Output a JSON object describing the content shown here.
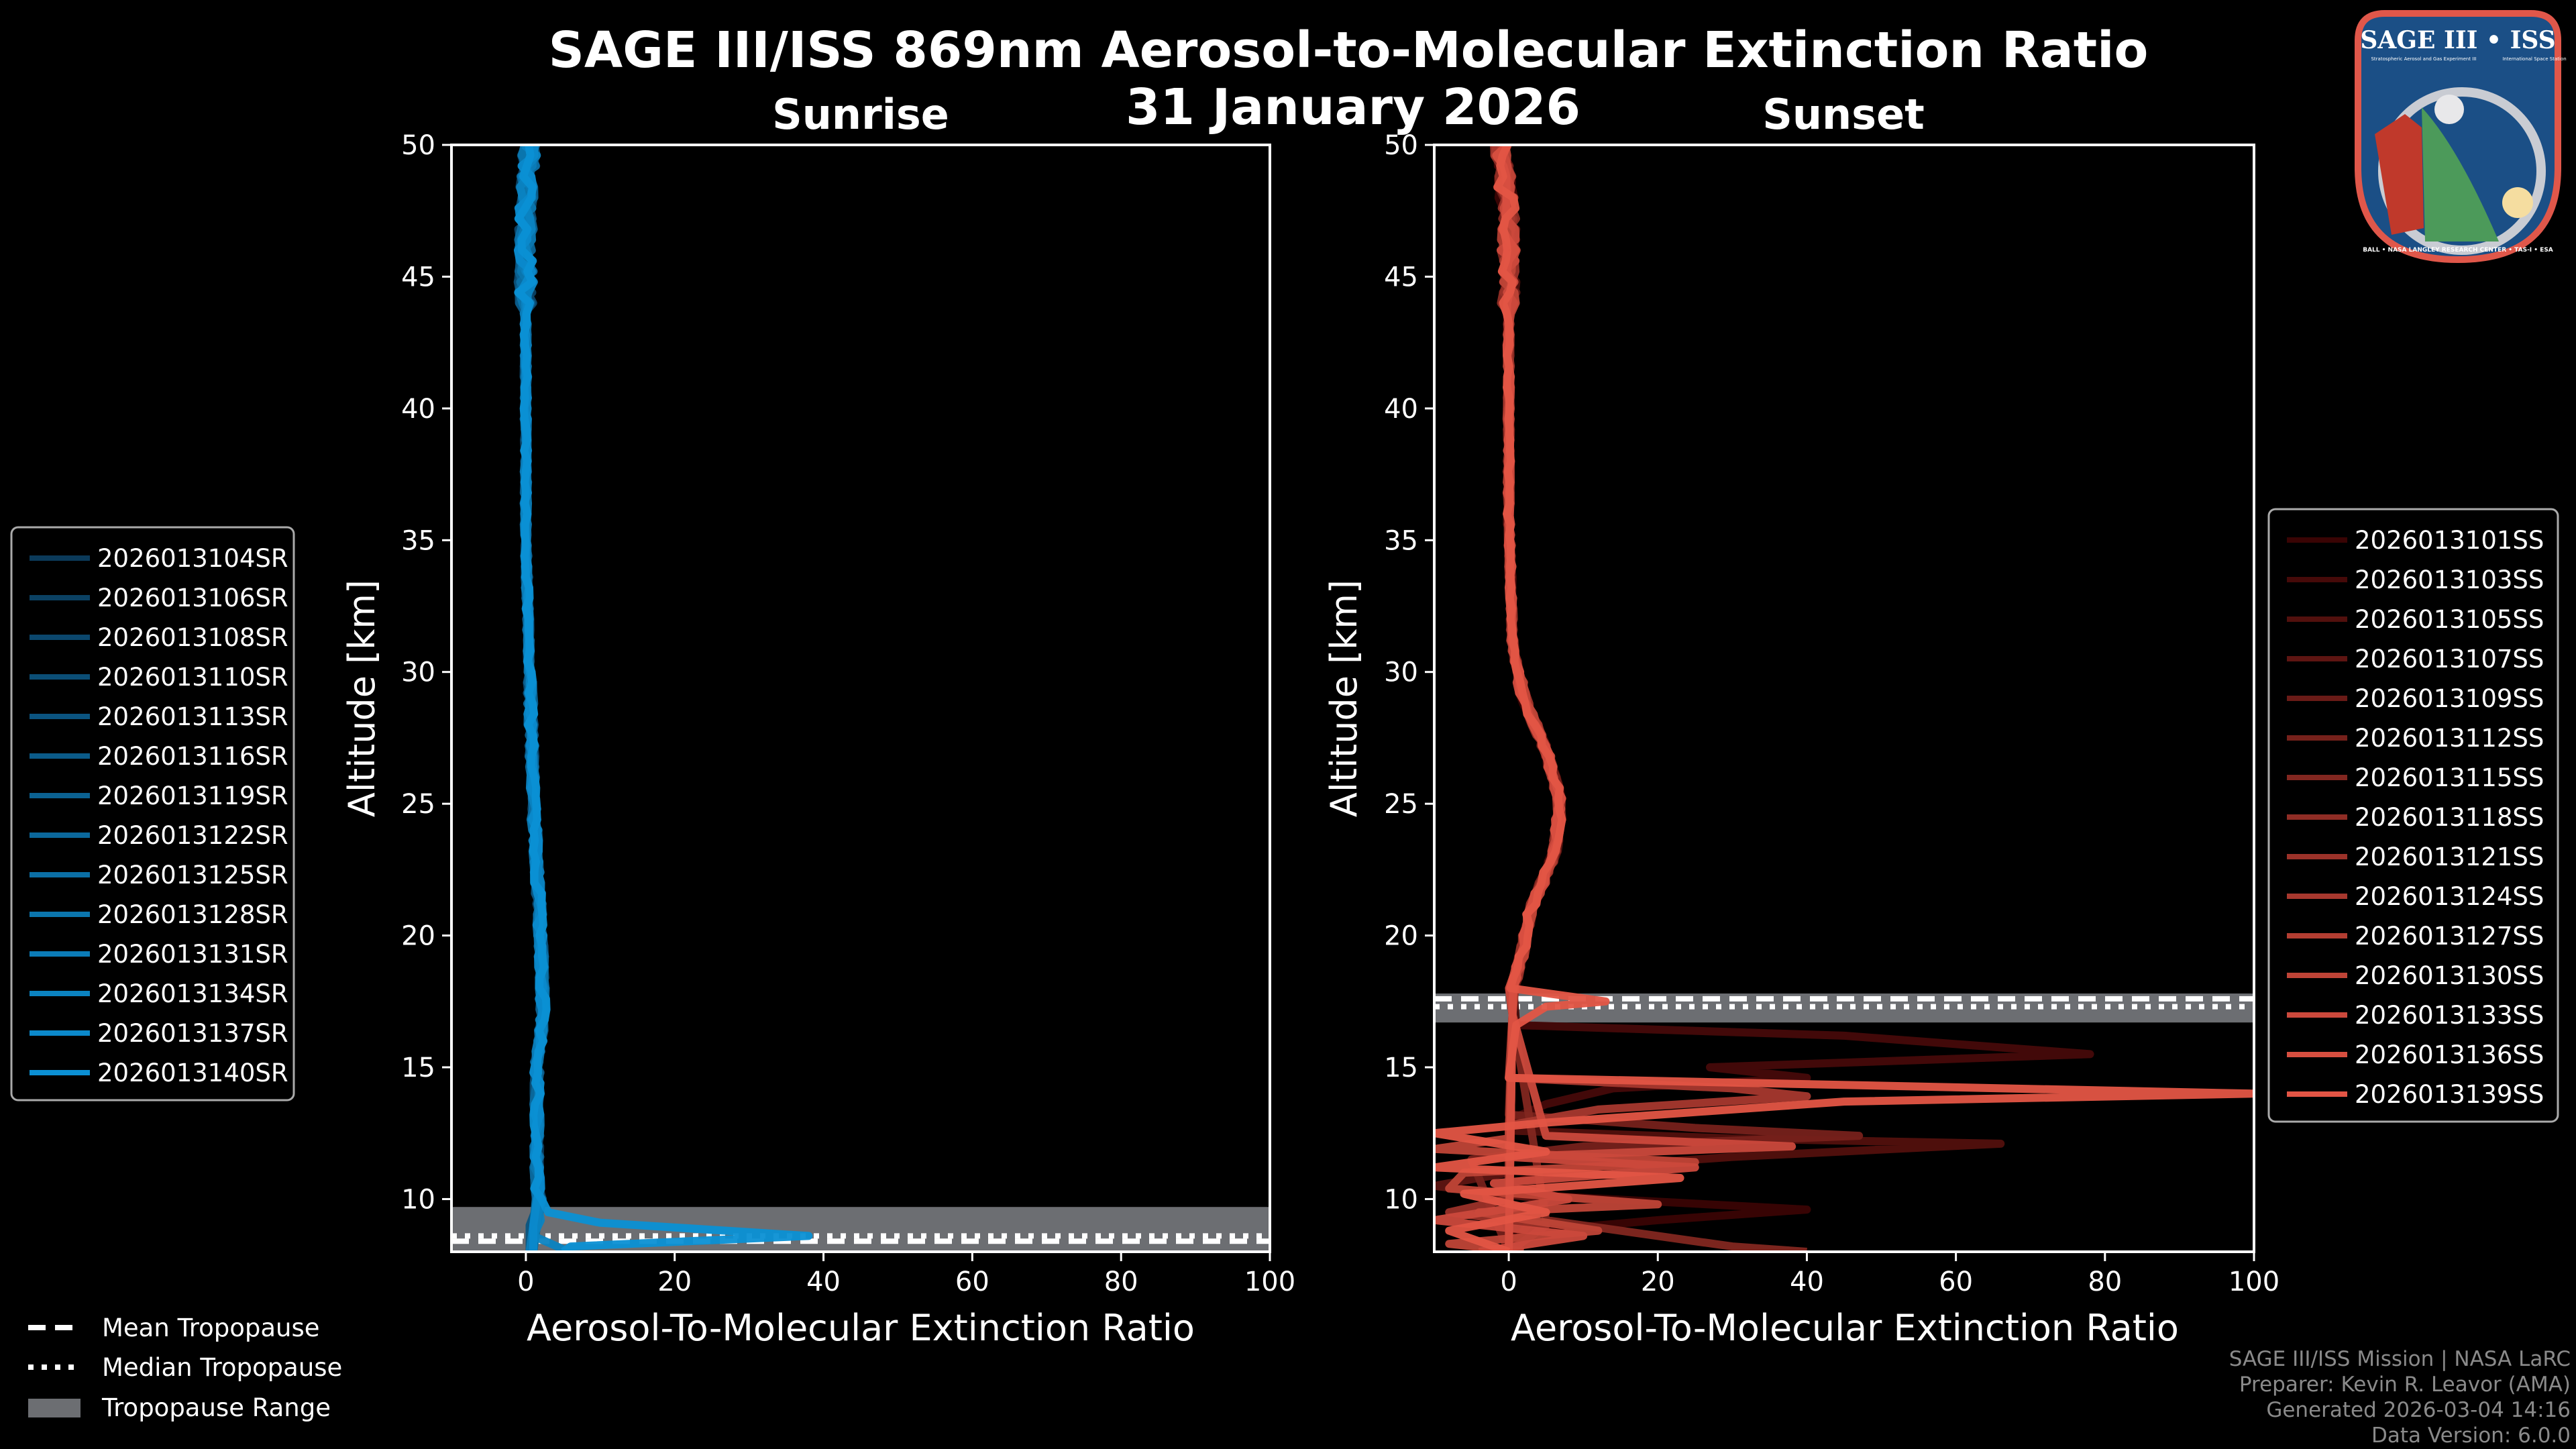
{
  "title": "SAGE III/ISS 869nm Aerosol-to-Molecular Extinction Ratio",
  "date": "31 January 2026",
  "footer": [
    "SAGE III/ISS Mission | NASA LaRC",
    "Preparer: Kevin R. Leavor (AMA)",
    "Generated 2026-03-04 14:16",
    "Data Version: 6.0.0"
  ],
  "logo": {
    "title": "SAGE III • ISS",
    "subtitle": "Stratospheric Aerosol and Gas Experiment III",
    "subtitle2": "International Space Station",
    "ring": "BALL • NASA LANGLEY RESEARCH CENTER • TAS-I • ESA"
  },
  "tropo_legend": {
    "mean": "Mean Tropopause",
    "median": "Median Tropopause",
    "range": "Tropopause Range"
  },
  "chart_data": [
    {
      "type": "line",
      "title": "Sunrise",
      "xlabel": "Aerosol-To-Molecular Extinction Ratio",
      "ylabel": "Altitude [km]",
      "xlim": [
        -10,
        100
      ],
      "ylim": [
        8,
        50
      ],
      "xticks": [
        0,
        20,
        40,
        60,
        80,
        100
      ],
      "yticks": [
        10,
        15,
        20,
        25,
        30,
        35,
        40,
        45,
        50
      ],
      "legend_placement": "left-outside",
      "color_start": "#0b3a5a",
      "color_end": "#0b90d4",
      "tropopause": {
        "mean": 8.4,
        "median": 8.6,
        "range": [
          8.0,
          9.7
        ]
      },
      "base_profile": [
        [
          50,
          0.5
        ],
        [
          47,
          0
        ],
        [
          42,
          0
        ],
        [
          35,
          0
        ],
        [
          30,
          0.5
        ],
        [
          25,
          1
        ],
        [
          20,
          2
        ],
        [
          17,
          2.3
        ],
        [
          15,
          1.5
        ],
        [
          10.5,
          1.5
        ],
        [
          9.7,
          2
        ]
      ],
      "series": [
        {
          "name": "2026013104SR",
          "tropo": [
            [
              9,
              1
            ],
            [
              8,
              1
            ]
          ]
        },
        {
          "name": "2026013106SR",
          "tropo": [
            [
              9,
              1.5
            ],
            [
              8,
              1
            ]
          ]
        },
        {
          "name": "2026013108SR",
          "tropo": [
            [
              9,
              1
            ],
            [
              8,
              0.5
            ]
          ]
        },
        {
          "name": "2026013110SR",
          "tropo": [
            [
              9,
              1
            ],
            [
              8,
              1
            ]
          ]
        },
        {
          "name": "2026013113SR",
          "tropo": [
            [
              9,
              0.5
            ],
            [
              8,
              0.5
            ]
          ]
        },
        {
          "name": "2026013116SR",
          "tropo": [
            [
              9,
              1
            ],
            [
              8,
              1
            ]
          ]
        },
        {
          "name": "2026013119SR",
          "tropo": [
            [
              9,
              1
            ],
            [
              8,
              0.5
            ]
          ]
        },
        {
          "name": "2026013122SR",
          "tropo": [
            [
              9,
              1
            ],
            [
              8,
              1
            ]
          ]
        },
        {
          "name": "2026013125SR",
          "tropo": [
            [
              9,
              1
            ],
            [
              8,
              1
            ]
          ]
        },
        {
          "name": "2026013128SR",
          "tropo": [
            [
              9,
              1.5
            ],
            [
              8,
              1
            ]
          ]
        },
        {
          "name": "2026013131SR",
          "tropo": [
            [
              9,
              1
            ],
            [
              8,
              0.5
            ]
          ]
        },
        {
          "name": "2026013134SR",
          "tropo": [
            [
              9.2,
              2
            ],
            [
              8.6,
              1
            ],
            [
              8.1,
              5
            ]
          ]
        },
        {
          "name": "2026013137SR",
          "tropo": [
            [
              9,
              1
            ],
            [
              8,
              1
            ]
          ]
        },
        {
          "name": "2026013140SR",
          "tropo": [
            [
              9.5,
              3
            ],
            [
              9.1,
              10
            ],
            [
              8.6,
              38
            ],
            [
              8.2,
              6
            ],
            [
              8,
              5
            ]
          ]
        }
      ]
    },
    {
      "type": "line",
      "title": "Sunset",
      "xlabel": "Aerosol-To-Molecular Extinction Ratio",
      "ylabel": "Altitude [km]",
      "xlim": [
        -10,
        100
      ],
      "ylim": [
        8,
        50
      ],
      "xticks": [
        0,
        20,
        40,
        60,
        80,
        100
      ],
      "yticks": [
        10,
        15,
        20,
        25,
        30,
        35,
        40,
        45,
        50
      ],
      "legend_placement": "right-outside",
      "color_start": "#3a0404",
      "color_end": "#e35545",
      "tropopause": {
        "mean": 17.6,
        "median": 17.3,
        "range": [
          16.7,
          17.8
        ]
      },
      "base_profile": [
        [
          50,
          -1
        ],
        [
          47,
          0
        ],
        [
          42,
          0
        ],
        [
          36,
          0
        ],
        [
          31,
          0.5
        ],
        [
          29,
          2
        ],
        [
          27,
          5
        ],
        [
          25,
          7
        ],
        [
          23,
          6
        ],
        [
          21,
          3
        ],
        [
          19,
          1.5
        ],
        [
          18,
          0.5
        ]
      ],
      "series": [
        {
          "name": "2026013101SS",
          "tropo": [
            [
              17,
              0.5
            ],
            [
              10.2,
              0
            ],
            [
              9.6,
              40
            ],
            [
              9.2,
              20
            ],
            [
              8.7,
              0
            ],
            [
              8,
              0
            ]
          ]
        },
        {
          "name": "2026013103SS",
          "tropo": [
            [
              16.6,
              1
            ],
            [
              16.2,
              45
            ],
            [
              15.5,
              78
            ],
            [
              15.0,
              27
            ],
            [
              14.6,
              40
            ],
            [
              14.2,
              14
            ],
            [
              13.6,
              5
            ],
            [
              13,
              0
            ],
            [
              8,
              0
            ]
          ]
        },
        {
          "name": "2026013105SS",
          "tropo": [
            [
              17,
              0.5
            ],
            [
              12.6,
              0
            ],
            [
              12.3,
              30
            ],
            [
              12.1,
              66
            ],
            [
              11.6,
              30
            ],
            [
              11.2,
              10
            ],
            [
              10.6,
              0
            ],
            [
              8,
              0
            ]
          ]
        },
        {
          "name": "2026013107SS",
          "tropo": [
            [
              17,
              0.5
            ],
            [
              11,
              0
            ],
            [
              10.5,
              -10
            ],
            [
              10,
              5
            ],
            [
              8,
              0
            ]
          ]
        },
        {
          "name": "2026013109SS",
          "tropo": [
            [
              17,
              0.5
            ],
            [
              8,
              0
            ]
          ]
        },
        {
          "name": "2026013112SS",
          "tropo": [
            [
              17,
              0.5
            ],
            [
              13.2,
              0
            ],
            [
              12.7,
              25
            ],
            [
              12.4,
              47
            ],
            [
              12.0,
              10
            ],
            [
              11.5,
              -5
            ],
            [
              8,
              0
            ]
          ]
        },
        {
          "name": "2026013115SS",
          "tropo": [
            [
              17,
              0.5
            ],
            [
              9.2,
              5
            ],
            [
              8.2,
              30
            ],
            [
              8,
              40
            ]
          ]
        },
        {
          "name": "2026013118SS",
          "tropo": [
            [
              17,
              0.5
            ],
            [
              8,
              0
            ]
          ]
        },
        {
          "name": "2026013121SS",
          "tropo": [
            [
              17,
              0.5
            ],
            [
              10,
              0
            ],
            [
              9.5,
              -8
            ],
            [
              9,
              5
            ],
            [
              8,
              0
            ]
          ]
        },
        {
          "name": "2026013124SS",
          "tropo": [
            [
              17,
              0.5
            ],
            [
              14.6,
              0
            ],
            [
              14.2,
              30
            ],
            [
              13.9,
              40
            ],
            [
              13.4,
              12
            ],
            [
              12.8,
              0
            ],
            [
              8,
              0
            ]
          ]
        },
        {
          "name": "2026013127SS",
          "tropo": [
            [
              17,
              0.5
            ],
            [
              8,
              0
            ]
          ]
        },
        {
          "name": "2026013130SS",
          "tropo": [
            [
              17,
              0.5
            ],
            [
              12.3,
              0
            ],
            [
              11.9,
              -10
            ],
            [
              11.4,
              25
            ],
            [
              11.0,
              -6
            ],
            [
              10.4,
              -8
            ],
            [
              9.8,
              20
            ],
            [
              9.5,
              -4
            ],
            [
              8.8,
              12
            ],
            [
              8.3,
              -8
            ],
            [
              8,
              2
            ]
          ]
        },
        {
          "name": "2026013133SS",
          "tropo": [
            [
              17,
              0.5
            ],
            [
              12.4,
              5
            ],
            [
              12.0,
              38
            ],
            [
              11.6,
              0
            ],
            [
              11.2,
              25
            ],
            [
              10.6,
              -2
            ],
            [
              10.0,
              8
            ],
            [
              9.2,
              -10
            ],
            [
              8.6,
              10
            ],
            [
              8,
              -4
            ]
          ]
        },
        {
          "name": "2026013136SS",
          "tropo": [
            [
              17,
              0.5
            ],
            [
              8,
              0
            ]
          ]
        },
        {
          "name": "2026013139SS",
          "tropo": [
            [
              17.5,
              13
            ],
            [
              17.3,
              5
            ],
            [
              16.6,
              1
            ],
            [
              14.6,
              0
            ],
            [
              14.0,
              100
            ],
            [
              13.7,
              45
            ],
            [
              13.3,
              25
            ],
            [
              12.9,
              5
            ],
            [
              12.5,
              -10
            ],
            [
              11.8,
              5
            ],
            [
              11.2,
              -10
            ],
            [
              10.8,
              23
            ],
            [
              10.2,
              -6
            ],
            [
              9.5,
              5
            ],
            [
              8.8,
              -8
            ],
            [
              8,
              0
            ]
          ]
        }
      ]
    }
  ]
}
